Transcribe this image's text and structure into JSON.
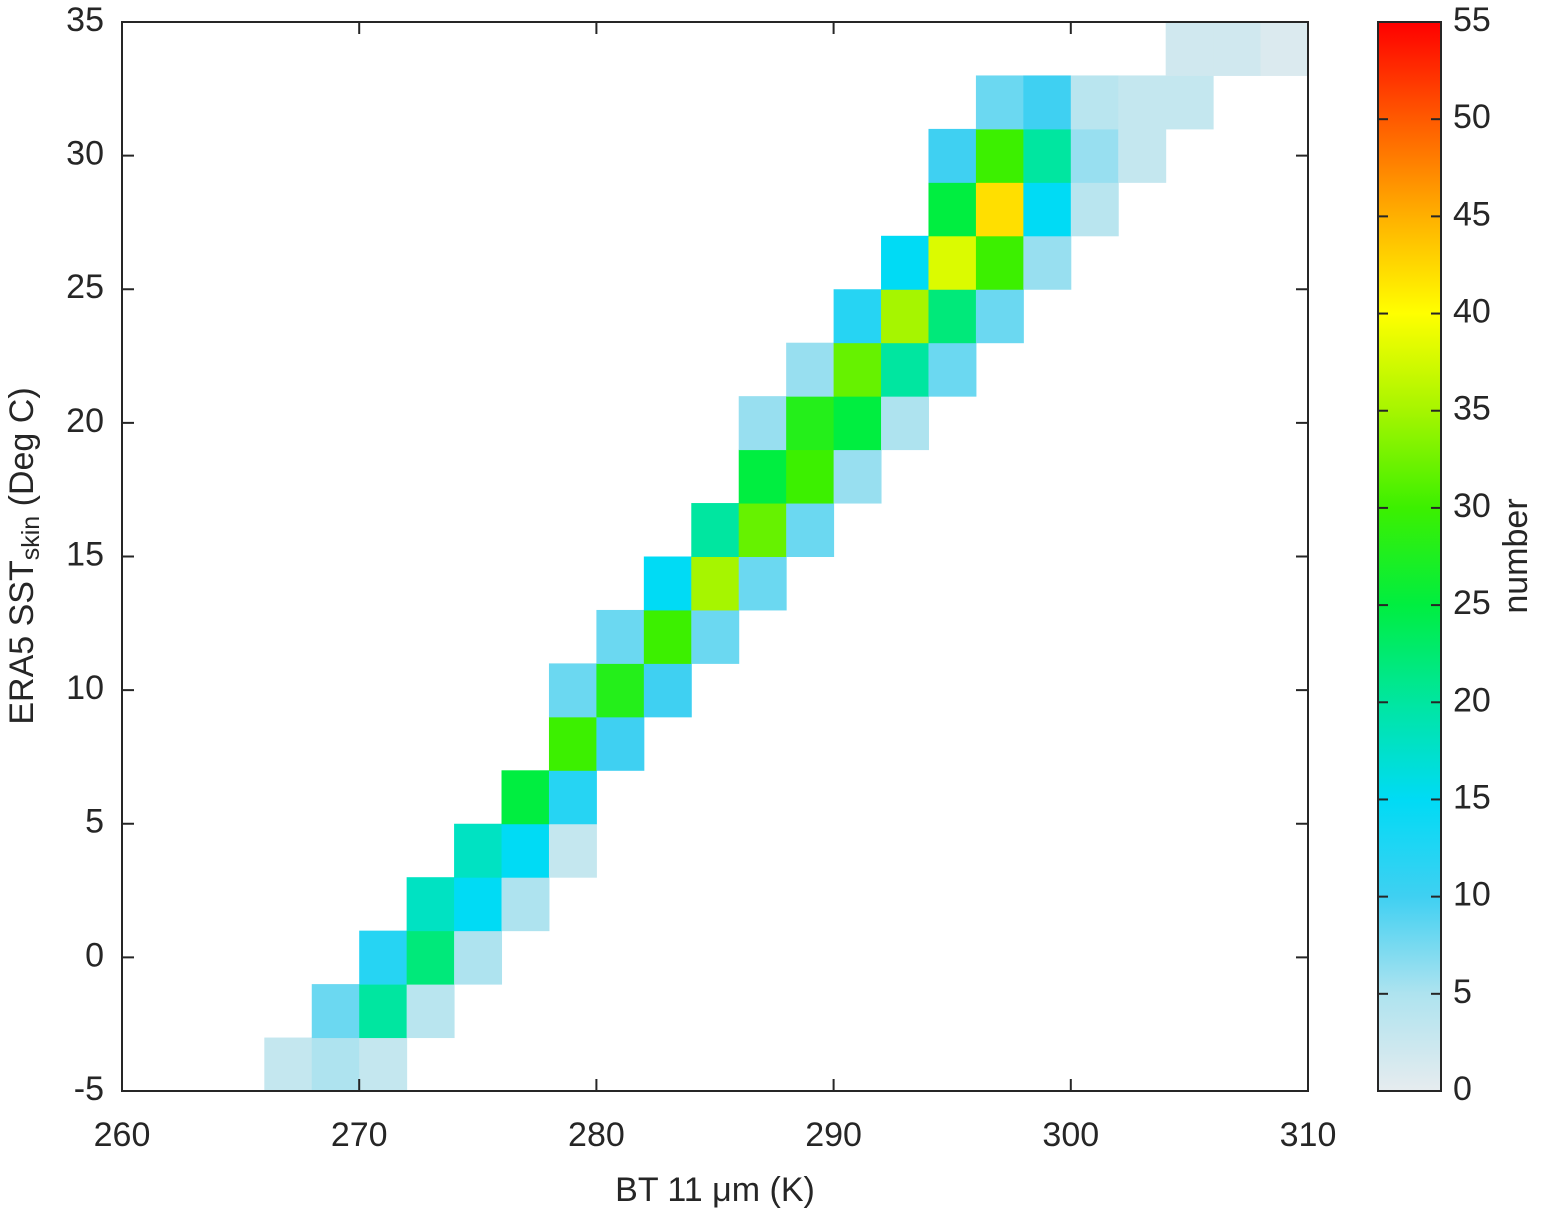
{
  "chart_data": {
    "type": "heatmap",
    "xlabel": "BT 11 μm (K)",
    "ylabel_parts": [
      "ERA5 SST",
      "skin",
      " (Deg C)"
    ],
    "xlim": [
      260,
      310
    ],
    "xticks": [
      260,
      270,
      280,
      290,
      300,
      310
    ],
    "ylim": [
      -5,
      35
    ],
    "yticks": [
      -5,
      0,
      5,
      10,
      15,
      20,
      25,
      30,
      35
    ],
    "xbins": [
      264,
      266,
      268,
      270,
      272,
      274,
      276,
      278,
      280,
      282,
      284,
      286,
      288,
      290,
      292,
      294,
      296,
      298,
      300,
      302,
      304,
      306,
      308,
      310
    ],
    "ybins": [
      -5,
      -3,
      -1,
      1,
      3,
      5,
      7,
      9,
      11,
      13,
      15,
      17,
      19,
      21,
      23,
      25,
      27,
      29,
      31,
      33,
      35
    ],
    "z": [
      [
        null,
        3,
        5,
        3,
        null,
        null,
        null,
        null,
        null,
        null,
        null,
        null,
        null,
        null,
        null,
        null,
        null,
        null,
        null,
        null,
        null,
        null,
        null
      ],
      [
        null,
        null,
        8,
        20,
        4,
        null,
        null,
        null,
        null,
        null,
        null,
        null,
        null,
        null,
        null,
        null,
        null,
        null,
        null,
        null,
        null,
        null,
        null
      ],
      [
        null,
        null,
        null,
        12,
        22,
        5,
        null,
        null,
        null,
        null,
        null,
        null,
        null,
        null,
        null,
        null,
        null,
        null,
        null,
        null,
        null,
        null,
        null
      ],
      [
        null,
        null,
        null,
        null,
        18,
        15,
        5,
        null,
        null,
        null,
        null,
        null,
        null,
        null,
        null,
        null,
        null,
        null,
        null,
        null,
        null,
        null,
        null
      ],
      [
        null,
        null,
        null,
        null,
        null,
        18,
        15,
        3,
        null,
        null,
        null,
        null,
        null,
        null,
        null,
        null,
        null,
        null,
        null,
        null,
        null,
        null,
        null
      ],
      [
        null,
        null,
        null,
        null,
        null,
        null,
        25,
        12,
        null,
        null,
        null,
        null,
        null,
        null,
        null,
        null,
        null,
        null,
        null,
        null,
        null,
        null,
        null
      ],
      [
        null,
        null,
        null,
        null,
        null,
        null,
        null,
        30,
        10,
        null,
        null,
        null,
        null,
        null,
        null,
        null,
        null,
        null,
        null,
        null,
        null,
        null,
        null
      ],
      [
        null,
        null,
        null,
        null,
        null,
        null,
        null,
        8,
        28,
        10,
        null,
        null,
        null,
        null,
        null,
        null,
        null,
        null,
        null,
        null,
        null,
        null,
        null
      ],
      [
        null,
        null,
        null,
        null,
        null,
        null,
        null,
        null,
        8,
        30,
        8,
        null,
        null,
        null,
        null,
        null,
        null,
        null,
        null,
        null,
        null,
        null,
        null
      ],
      [
        null,
        null,
        null,
        null,
        null,
        null,
        null,
        null,
        null,
        15,
        35,
        8,
        null,
        null,
        null,
        null,
        null,
        null,
        null,
        null,
        null,
        null,
        null
      ],
      [
        null,
        null,
        null,
        null,
        null,
        null,
        null,
        null,
        null,
        null,
        20,
        32,
        8,
        null,
        null,
        null,
        null,
        null,
        null,
        null,
        null,
        null,
        null
      ],
      [
        null,
        null,
        null,
        null,
        null,
        null,
        null,
        null,
        null,
        null,
        null,
        25,
        30,
        6,
        null,
        null,
        null,
        null,
        null,
        null,
        null,
        null,
        null
      ],
      [
        null,
        null,
        null,
        null,
        null,
        null,
        null,
        null,
        null,
        null,
        null,
        6,
        28,
        25,
        5,
        null,
        null,
        null,
        null,
        null,
        null,
        null,
        null
      ],
      [
        null,
        null,
        null,
        null,
        null,
        null,
        null,
        null,
        null,
        null,
        null,
        null,
        6,
        32,
        20,
        8,
        null,
        null,
        null,
        null,
        null,
        null,
        null
      ],
      [
        null,
        null,
        null,
        null,
        null,
        null,
        null,
        null,
        null,
        null,
        null,
        null,
        null,
        12,
        35,
        22,
        8,
        null,
        null,
        null,
        null,
        null,
        null
      ],
      [
        null,
        null,
        null,
        null,
        null,
        null,
        null,
        null,
        null,
        null,
        null,
        null,
        null,
        null,
        15,
        38,
        30,
        6,
        null,
        null,
        null,
        null,
        null
      ],
      [
        null,
        null,
        null,
        null,
        null,
        null,
        null,
        null,
        null,
        null,
        null,
        null,
        null,
        null,
        null,
        25,
        42,
        15,
        4,
        null,
        null,
        null,
        null
      ],
      [
        null,
        null,
        null,
        null,
        null,
        null,
        null,
        null,
        null,
        null,
        null,
        null,
        null,
        null,
        null,
        10,
        30,
        20,
        6,
        3,
        null,
        null,
        null
      ],
      [
        null,
        null,
        null,
        null,
        null,
        null,
        null,
        null,
        null,
        null,
        null,
        null,
        null,
        null,
        null,
        null,
        8,
        10,
        4,
        3,
        3,
        null,
        null
      ],
      [
        null,
        null,
        null,
        null,
        null,
        null,
        null,
        null,
        null,
        null,
        null,
        null,
        null,
        null,
        null,
        null,
        null,
        null,
        null,
        null,
        2,
        2,
        1
      ]
    ],
    "colormap": [
      "#e6ecef",
      "#aee3ef",
      "#3fd0f2",
      "#00dbf5",
      "#00e6a0",
      "#00ee40",
      "#3cf000",
      "#a6f500",
      "#ffff00",
      "#ffb000",
      "#ff5a00",
      "#ff0000"
    ],
    "colorbar": {
      "label": "number",
      "lim": [
        0,
        55
      ],
      "ticks": [
        0,
        5,
        10,
        15,
        20,
        25,
        30,
        35,
        40,
        45,
        50,
        55
      ]
    }
  }
}
